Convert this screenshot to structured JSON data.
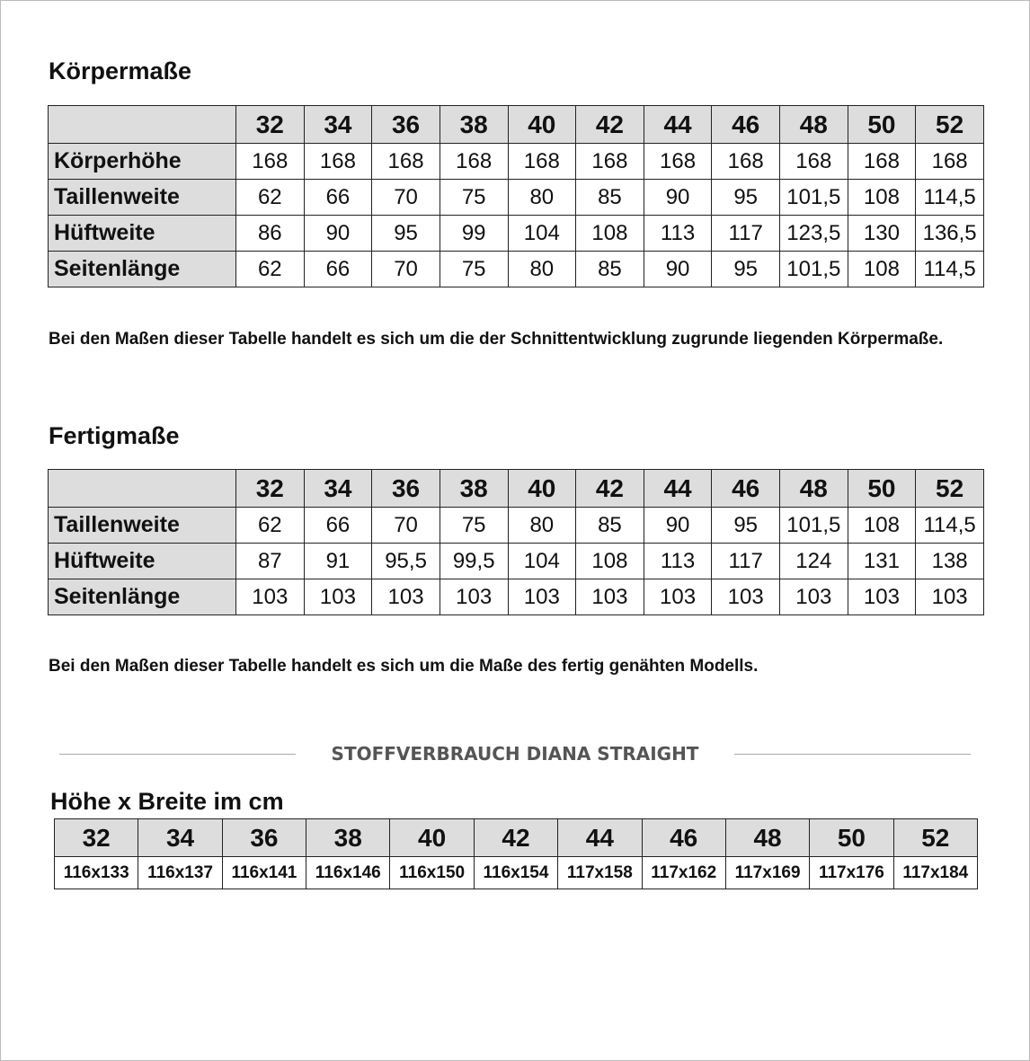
{
  "sizes": [
    "32",
    "34",
    "36",
    "38",
    "40",
    "42",
    "44",
    "46",
    "48",
    "50",
    "52"
  ],
  "koerpermasse": {
    "title": "Körpermaße",
    "rows": [
      {
        "label": "Körperhöhe",
        "values": [
          "168",
          "168",
          "168",
          "168",
          "168",
          "168",
          "168",
          "168",
          "168",
          "168",
          "168"
        ]
      },
      {
        "label": "Taillenweite",
        "values": [
          "62",
          "66",
          "70",
          "75",
          "80",
          "85",
          "90",
          "95",
          "101,5",
          "108",
          "114,5"
        ]
      },
      {
        "label": "Hüftweite",
        "values": [
          "86",
          "90",
          "95",
          "99",
          "104",
          "108",
          "113",
          "117",
          "123,5",
          "130",
          "136,5"
        ]
      },
      {
        "label": "Seitenlänge",
        "values": [
          "62",
          "66",
          "70",
          "75",
          "80",
          "85",
          "90",
          "95",
          "101,5",
          "108",
          "114,5"
        ]
      }
    ],
    "note": "Bei den Maßen dieser Tabelle handelt es sich um die der Schnittentwicklung zugrunde liegenden Körpermaße."
  },
  "fertigmasse": {
    "title": "Fertigmaße",
    "rows": [
      {
        "label": "Taillenweite",
        "values": [
          "62",
          "66",
          "70",
          "75",
          "80",
          "85",
          "90",
          "95",
          "101,5",
          "108",
          "114,5"
        ]
      },
      {
        "label": "Hüftweite",
        "values": [
          "87",
          "91",
          "95,5",
          "99,5",
          "104",
          "108",
          "113",
          "117",
          "124",
          "131",
          "138"
        ]
      },
      {
        "label": "Seitenlänge",
        "values": [
          "103",
          "103",
          "103",
          "103",
          "103",
          "103",
          "103",
          "103",
          "103",
          "103",
          "103"
        ]
      }
    ],
    "note": "Bei den Maßen dieser Tabelle handelt es sich um die Maße des fertig genähten Modells."
  },
  "stoffverbrauch": {
    "divider_title": "STOFFVERBRAUCH DIANA STRAIGHT",
    "title": "Höhe x Breite im cm",
    "values": [
      "116x133",
      "116x137",
      "116x141",
      "116x146",
      "116x150",
      "116x154",
      "117x158",
      "117x162",
      "117x169",
      "117x176",
      "117x184"
    ]
  }
}
